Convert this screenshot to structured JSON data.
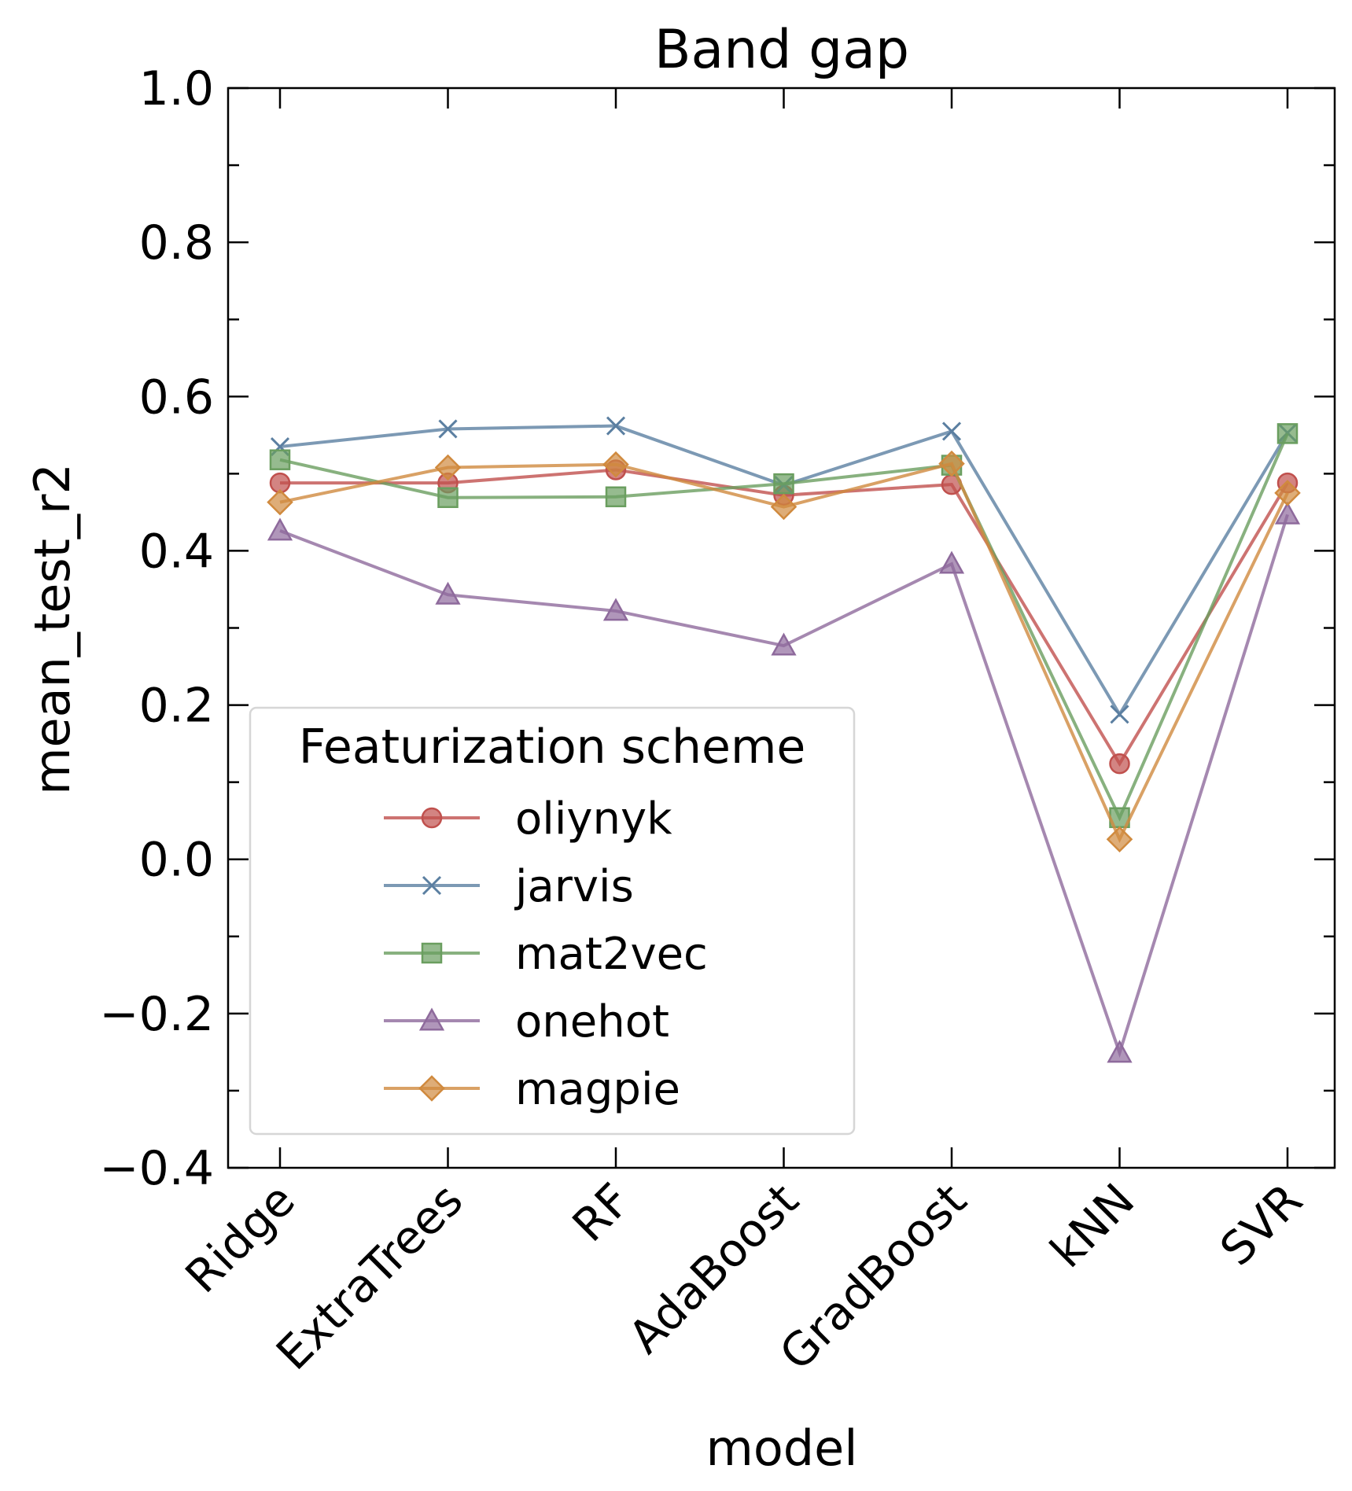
{
  "chart_data": {
    "type": "line",
    "title": "Band gap",
    "xlabel": "model",
    "ylabel": "mean_test_r2",
    "categories": [
      "Ridge",
      "ExtraTrees",
      "RF",
      "AdaBoost",
      "GradBoost",
      "kNN",
      "SVR"
    ],
    "ylim": [
      -0.4,
      1.0
    ],
    "yticks": [
      -0.4,
      -0.2,
      0.0,
      0.2,
      0.4,
      0.6,
      0.8,
      1.0
    ],
    "ytick_labels": [
      "−0.4",
      "−0.2",
      "0.0",
      "0.2",
      "0.4",
      "0.6",
      "0.8",
      "1.0"
    ],
    "grid": false,
    "legend": {
      "title": "Featurization scheme",
      "placement": "lower-left"
    },
    "series": [
      {
        "name": "oliynyk",
        "color": "#c0504d",
        "marker": "circle",
        "values": [
          0.488,
          0.488,
          0.505,
          0.472,
          0.486,
          0.124,
          0.488
        ]
      },
      {
        "name": "jarvis",
        "color": "#5b7fa1",
        "marker": "x",
        "values": [
          0.535,
          0.558,
          0.562,
          0.485,
          0.555,
          0.188,
          0.553
        ]
      },
      {
        "name": "mat2vec",
        "color": "#6a9e5f",
        "marker": "square",
        "values": [
          0.518,
          0.469,
          0.47,
          0.487,
          0.511,
          0.054,
          0.552
        ]
      },
      {
        "name": "onehot",
        "color": "#8e6a9c",
        "marker": "triangle",
        "values": [
          0.426,
          0.343,
          0.322,
          0.277,
          0.383,
          -0.251,
          0.447
        ]
      },
      {
        "name": "magpie",
        "color": "#d08a3e",
        "marker": "diamond",
        "values": [
          0.463,
          0.508,
          0.512,
          0.457,
          0.513,
          0.026,
          0.475
        ]
      }
    ]
  }
}
